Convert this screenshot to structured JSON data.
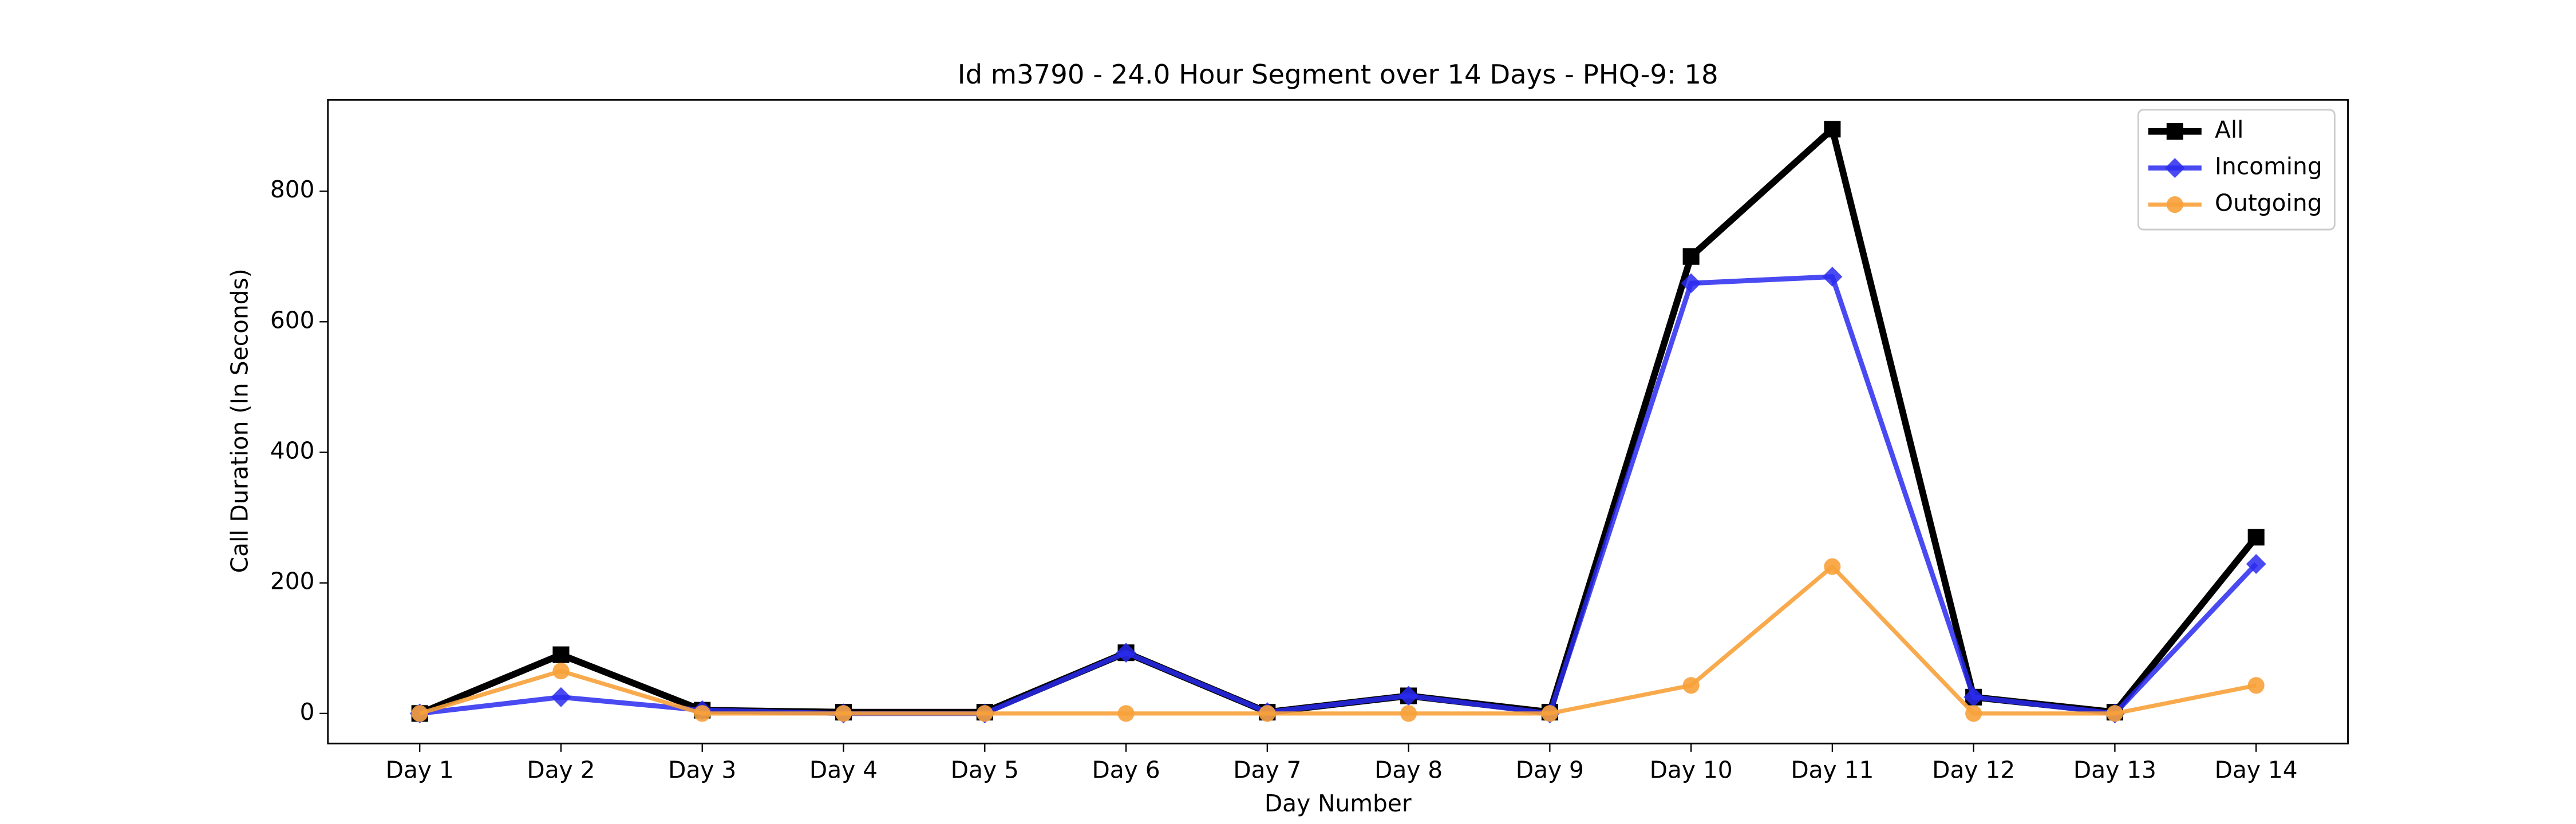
{
  "chart_data": {
    "type": "line",
    "title": "Id m3790 - 24.0 Hour Segment over 14 Days - PHQ-9: 18",
    "x_label": "Day Number",
    "y_label": "Call Duration (In Seconds)",
    "categories": [
      "Day 1",
      "Day 2",
      "Day 3",
      "Day 4",
      "Day 5",
      "Day 6",
      "Day 7",
      "Day 8",
      "Day 9",
      "Day 10",
      "Day 11",
      "Day 12",
      "Day 13",
      "Day 14"
    ],
    "series": [
      {
        "name": "All",
        "color": "#000000",
        "marker": "square",
        "values": [
          0,
          90,
          5,
          2,
          2,
          93,
          2,
          27,
          2,
          700,
          895,
          25,
          2,
          270
        ]
      },
      {
        "name": "Incoming",
        "color": "#2a2af0",
        "marker": "diamond",
        "values": [
          0,
          25,
          5,
          0,
          0,
          93,
          2,
          27,
          0,
          659,
          669,
          25,
          0,
          229
        ]
      },
      {
        "name": "Outgoing",
        "color": "#f7a13a",
        "marker": "circle",
        "values": [
          0,
          65,
          0,
          0,
          0,
          0,
          0,
          0,
          0,
          43,
          225,
          0,
          0,
          43
        ]
      }
    ],
    "ylim": [
      -46,
      940
    ],
    "yticks": [
      0,
      200,
      400,
      600,
      800
    ],
    "legend": "upper right",
    "grid": false
  }
}
